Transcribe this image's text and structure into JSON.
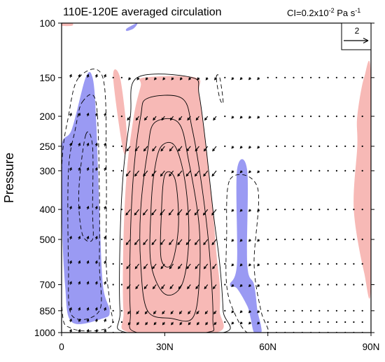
{
  "chart_data": {
    "type": "vector-contour",
    "title": "110E-120E averaged circulation",
    "subtitle": {
      "prefix": "CI=0.2x10",
      "exponent": "-2",
      "middle": " Pa s",
      "unit_exponent": "-1"
    },
    "xlabel": "",
    "ylabel": "Pressure",
    "xlim": [
      0,
      90
    ],
    "ylim": [
      1000,
      100
    ],
    "y_scale": "log",
    "x_ticks": [
      {
        "value": 0,
        "label": "0"
      },
      {
        "value": 30,
        "label": "30N"
      },
      {
        "value": 60,
        "label": "60N"
      },
      {
        "value": 90,
        "label": "90N"
      }
    ],
    "y_ticks": [
      {
        "value": 100,
        "label": "100"
      },
      {
        "value": 150,
        "label": "150"
      },
      {
        "value": 200,
        "label": "200"
      },
      {
        "value": 250,
        "label": "250"
      },
      {
        "value": 300,
        "label": "300"
      },
      {
        "value": 400,
        "label": "400"
      },
      {
        "value": 500,
        "label": "500"
      },
      {
        "value": 700,
        "label": "700"
      },
      {
        "value": 850,
        "label": "850"
      },
      {
        "value": 1000,
        "label": "1000"
      }
    ],
    "vector_levels": [
      150,
      200,
      250,
      300,
      400,
      500,
      600,
      700,
      850,
      925,
      1000
    ],
    "reference_vector": {
      "label": "2",
      "magnitude": 2
    },
    "shading_colors": {
      "positive": "#f7b9b6",
      "negative": "#9a9af3"
    },
    "shaded_regions": [
      {
        "sign": "positive",
        "points": [
          [
            24,
            150
          ],
          [
            39,
            150
          ],
          [
            40,
            170
          ],
          [
            42,
            250
          ],
          [
            44,
            400
          ],
          [
            45,
            550
          ],
          [
            46,
            700
          ],
          [
            46,
            850
          ],
          [
            45,
            1000
          ],
          [
            20,
            1000
          ],
          [
            18,
            850
          ],
          [
            18,
            500
          ],
          [
            19,
            300
          ],
          [
            21,
            200
          ],
          [
            23,
            160
          ]
        ]
      },
      {
        "sign": "positive",
        "points": [
          [
            15,
            150
          ],
          [
            17,
            150
          ],
          [
            19,
            230
          ],
          [
            18,
            260
          ]
        ]
      },
      {
        "sign": "positive",
        "points": [
          [
            86,
            200
          ],
          [
            88,
            150
          ],
          [
            90,
            150
          ],
          [
            90,
            700
          ],
          [
            88,
            640
          ],
          [
            85,
            400
          ],
          [
            86,
            250
          ]
        ]
      },
      {
        "sign": "positive",
        "points": [
          [
            0,
            100
          ],
          [
            3,
            100
          ],
          [
            3,
            102
          ],
          [
            0,
            102
          ]
        ]
      },
      {
        "sign": "negative",
        "points": [
          [
            7,
            150
          ],
          [
            9,
            150
          ],
          [
            10,
            200
          ],
          [
            11,
            400
          ],
          [
            12,
            700
          ],
          [
            14,
            850
          ],
          [
            12,
            900
          ],
          [
            3,
            925
          ],
          [
            1,
            700
          ],
          [
            0,
            400
          ],
          [
            0,
            250
          ],
          [
            3,
            220
          ]
        ]
      },
      {
        "sign": "negative",
        "points": [
          [
            51,
            300
          ],
          [
            54,
            300
          ],
          [
            54,
            600
          ],
          [
            56,
            700
          ],
          [
            57,
            850
          ],
          [
            58,
            950
          ],
          [
            58,
            1000
          ],
          [
            56,
            1000
          ],
          [
            55,
            900
          ],
          [
            54,
            820
          ],
          [
            51,
            720
          ],
          [
            49,
            700
          ],
          [
            51,
            600
          ]
        ]
      },
      {
        "sign": "negative",
        "points": [
          [
            19,
            104
          ],
          [
            22,
            100
          ],
          [
            21,
            104
          ],
          [
            19,
            106
          ]
        ]
      }
    ],
    "contours_positive": [
      [
        [
          22,
          150
        ],
        [
          38,
          150
        ],
        [
          40,
          170
        ],
        [
          42,
          250
        ],
        [
          44,
          400
        ],
        [
          46,
          600
        ],
        [
          47,
          850
        ],
        [
          47,
          1000
        ],
        [
          19,
          1000
        ],
        [
          17,
          850
        ],
        [
          17,
          500
        ],
        [
          18,
          300
        ],
        [
          20,
          200
        ]
      ],
      [
        [
          25,
          175
        ],
        [
          35,
          175
        ],
        [
          38,
          220
        ],
        [
          41,
          350
        ],
        [
          43,
          550
        ],
        [
          44,
          900
        ],
        [
          42,
          1000
        ],
        [
          22,
          1000
        ],
        [
          20,
          850
        ],
        [
          20,
          500
        ],
        [
          21,
          300
        ],
        [
          23,
          200
        ]
      ],
      [
        [
          27,
          210
        ],
        [
          34,
          210
        ],
        [
          37,
          280
        ],
        [
          40,
          450
        ],
        [
          40,
          700
        ],
        [
          38,
          900
        ],
        [
          32,
          900
        ],
        [
          25,
          850
        ],
        [
          23,
          600
        ],
        [
          23,
          400
        ],
        [
          25,
          260
        ]
      ],
      [
        [
          29,
          250
        ],
        [
          33,
          250
        ],
        [
          36,
          330
        ],
        [
          37,
          500
        ],
        [
          35,
          700
        ],
        [
          30,
          750
        ],
        [
          26,
          600
        ],
        [
          26,
          400
        ],
        [
          27,
          300
        ]
      ],
      [
        [
          30,
          310
        ],
        [
          33,
          320
        ],
        [
          34,
          450
        ],
        [
          32,
          600
        ],
        [
          29,
          580
        ],
        [
          29,
          420
        ]
      ]
    ],
    "contours_negative": [
      [
        [
          5,
          150
        ],
        [
          12,
          150
        ],
        [
          13,
          300
        ],
        [
          13,
          600
        ],
        [
          14,
          800
        ],
        [
          14,
          960
        ],
        [
          3,
          970
        ],
        [
          0,
          800
        ],
        [
          0,
          300
        ],
        [
          2,
          200
        ]
      ],
      [
        [
          6,
          180
        ],
        [
          10,
          180
        ],
        [
          11,
          350
        ],
        [
          11,
          600
        ],
        [
          11,
          850
        ],
        [
          3,
          880
        ],
        [
          2,
          600
        ],
        [
          2,
          300
        ],
        [
          4,
          220
        ]
      ],
      [
        [
          7,
          230
        ],
        [
          9,
          250
        ],
        [
          9,
          400
        ],
        [
          9,
          500
        ],
        [
          6,
          480
        ],
        [
          5,
          350
        ]
      ],
      [
        [
          49,
          320
        ],
        [
          57,
          340
        ],
        [
          56,
          600
        ],
        [
          58,
          850
        ],
        [
          60,
          1000
        ],
        [
          54,
          1000
        ],
        [
          50,
          850
        ],
        [
          48,
          700
        ],
        [
          48,
          500
        ]
      ],
      [
        [
          45,
          150
        ],
        [
          46,
          150
        ],
        [
          47,
          180
        ],
        [
          46,
          175
        ]
      ]
    ]
  }
}
